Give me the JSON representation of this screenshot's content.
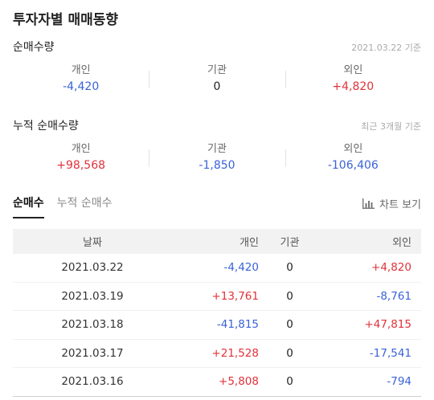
{
  "title": "투자자별 매매동향",
  "net": {
    "title": "순매수량",
    "note": "2021.03.22 기준",
    "labels": [
      "개인",
      "기관",
      "외인"
    ],
    "values": [
      "-4,420",
      "0",
      "+4,820"
    ]
  },
  "cumulative": {
    "title": "누적 순매수량",
    "note": "최근 3개월 기준",
    "labels": [
      "개인",
      "기관",
      "외인"
    ],
    "values": [
      "+98,568",
      "-1,850",
      "-106,406"
    ]
  },
  "tabs": [
    "순매수",
    "누적 순매수"
  ],
  "chart_link": {
    "label": "차트 보기",
    "icon": "bar-chart-icon"
  },
  "table": {
    "headers": [
      "날짜",
      "개인",
      "기관",
      "외인"
    ],
    "rows": [
      [
        "2021.03.22",
        "-4,420",
        "0",
        "+4,820"
      ],
      [
        "2021.03.19",
        "+13,761",
        "0",
        "-8,761"
      ],
      [
        "2021.03.18",
        "-41,815",
        "0",
        "+47,815"
      ],
      [
        "2021.03.17",
        "+21,528",
        "0",
        "-17,541"
      ],
      [
        "2021.03.16",
        "+5,808",
        "0",
        "-794"
      ]
    ]
  },
  "colors": {
    "positive": "#e0323a",
    "negative": "#3a62d8"
  }
}
